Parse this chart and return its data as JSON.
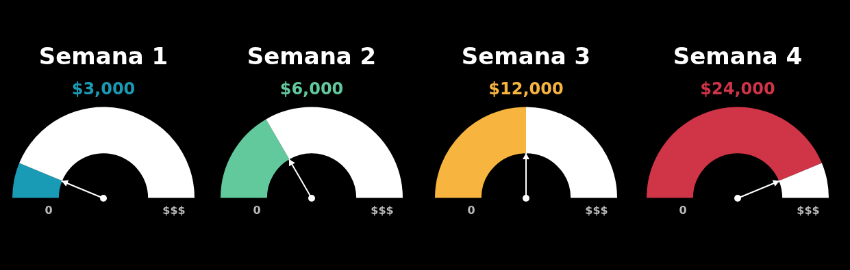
{
  "chart_data": [
    {
      "type": "donut",
      "title": "Semana 1",
      "subtitle": "$3,000",
      "categories": [
        null,
        null
      ],
      "values": [
        12.5,
        87.5
      ],
      "colors": [
        "#1a9bb5",
        "#ffffff"
      ],
      "annotations": [
        "0",
        "$$$"
      ]
    },
    {
      "type": "donut",
      "title": "Semana 2",
      "subtitle": "$6,000",
      "categories": [
        null,
        null
      ],
      "values": [
        33.3,
        66.7
      ],
      "colors": [
        "#62c99d",
        "#ffffff"
      ],
      "annotations": [
        "0",
        "$$$"
      ]
    },
    {
      "type": "donut",
      "title": "Semana 3",
      "subtitle": "$12,000",
      "categories": [
        null,
        null
      ],
      "values": [
        50,
        50
      ],
      "colors": [
        "#f7b53f",
        "#ffffff"
      ],
      "annotations": [
        "0",
        "$$$"
      ]
    },
    {
      "type": "donut",
      "title": "Semana 4",
      "subtitle": "$24,000",
      "categories": [
        null,
        null
      ],
      "values": [
        87.5,
        12.5
      ],
      "colors": [
        "#cf3447",
        "#ffffff"
      ],
      "annotations": [
        "0",
        "$$$"
      ]
    }
  ]
}
